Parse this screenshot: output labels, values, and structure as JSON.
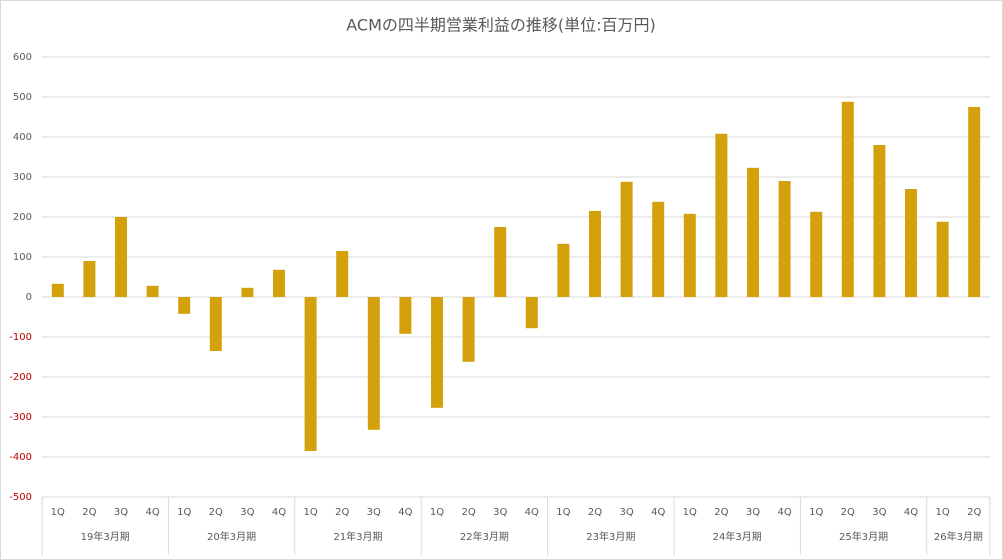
{
  "chart_data": {
    "type": "bar",
    "title": "ACMの四半期営業利益の推移(単位:百万円)",
    "color": "#d4a00c",
    "negative_tick_color": "#c00000",
    "ylim": [
      -500,
      600
    ],
    "yticks": [
      -500,
      -400,
      -300,
      -200,
      -100,
      0,
      100,
      200,
      300,
      400,
      500,
      600
    ],
    "grid": true,
    "groups": [
      {
        "name": "19年3月期",
        "categories": [
          "1Q",
          "2Q",
          "3Q",
          "4Q"
        ],
        "values": [
          33,
          90,
          200,
          28
        ]
      },
      {
        "name": "20年3月期",
        "categories": [
          "1Q",
          "2Q",
          "3Q",
          "4Q"
        ],
        "values": [
          -42,
          -135,
          23,
          68
        ]
      },
      {
        "name": "21年3月期",
        "categories": [
          "1Q",
          "2Q",
          "3Q",
          "4Q"
        ],
        "values": [
          -385,
          115,
          -332,
          -92
        ]
      },
      {
        "name": "22年3月期",
        "categories": [
          "1Q",
          "2Q",
          "3Q",
          "4Q"
        ],
        "values": [
          -277,
          -162,
          175,
          -78
        ]
      },
      {
        "name": "23年3月期",
        "categories": [
          "1Q",
          "2Q",
          "3Q",
          "4Q"
        ],
        "values": [
          133,
          215,
          288,
          238
        ]
      },
      {
        "name": "24年3月期",
        "categories": [
          "1Q",
          "2Q",
          "3Q",
          "4Q"
        ],
        "values": [
          208,
          408,
          323,
          290
        ]
      },
      {
        "name": "25年3月期",
        "categories": [
          "1Q",
          "2Q",
          "3Q",
          "4Q"
        ],
        "values": [
          213,
          488,
          380,
          270
        ]
      },
      {
        "name": "26年3月期",
        "categories": [
          "1Q",
          "2Q"
        ],
        "values": [
          188,
          475
        ]
      }
    ]
  }
}
